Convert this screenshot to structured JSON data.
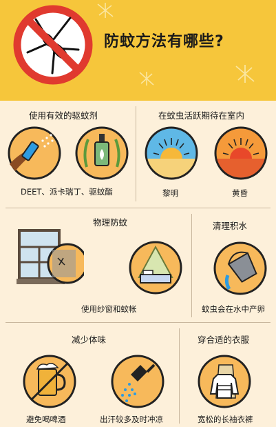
{
  "title": "防蚊方法有哪些?",
  "sections": {
    "repellent": {
      "heading": "使用有效的驱蚊剂",
      "caption": "DEET、派卡瑞丁、驱蚊酯"
    },
    "stay_indoors": {
      "heading": "在蚊虫活跃期待在室内",
      "dawn": "黎明",
      "dusk": "黄昏"
    },
    "physical": {
      "heading": "物理防蚊",
      "caption": "使用纱窗和蚊帐"
    },
    "water": {
      "heading": "清理积水",
      "caption": "蚊虫会在水中产卵"
    },
    "odor": {
      "heading": "减少体味",
      "beer": "避免喝啤酒",
      "shower": "出汗较多及时冲凉"
    },
    "clothing": {
      "heading": "穿合适的衣服",
      "caption": "宽松的长袖衣裤"
    }
  },
  "colors": {
    "header_bg": "#f6c63b",
    "body_bg": "#fdf0da",
    "prohibit_red": "#e03a2f",
    "circle_fill": "#f7b95b"
  },
  "icons": [
    "no-mosquito-icon",
    "spray-icon",
    "repellent-bottle-icon",
    "sunrise-icon",
    "sunset-icon",
    "window-screen-icon",
    "bed-net-icon",
    "pouring-bucket-icon",
    "beer-icon",
    "shower-icon",
    "long-sleeve-clothes-icon"
  ]
}
